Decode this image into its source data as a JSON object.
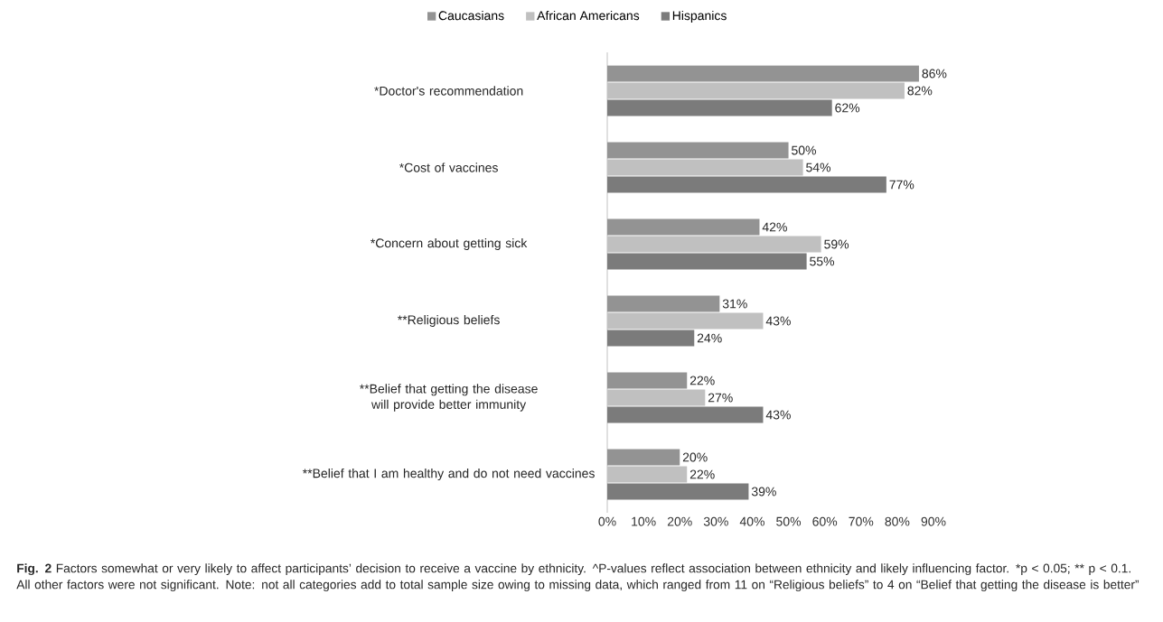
{
  "chart_data": {
    "type": "bar",
    "orientation": "horizontal",
    "legend": "top",
    "grid": false,
    "categories": [
      "*Doctor's recommendation",
      "*Cost of vaccines",
      "*Concern about getting sick",
      "**Religious beliefs",
      "**Belief that getting the disease will provide better immunity",
      "**Belief that I am healthy and do not need vaccines"
    ],
    "series": [
      {
        "name": "Caucasians",
        "color": "#939393",
        "values": [
          86,
          50,
          42,
          31,
          22,
          20
        ],
        "value_labels": [
          "86%",
          "50%",
          "42%",
          "31%",
          "22%",
          "20%"
        ]
      },
      {
        "name": "African Americans",
        "color": "#c0c0c0",
        "values": [
          82,
          54,
          59,
          43,
          27,
          22
        ],
        "value_labels": [
          "82%",
          "54%",
          "59%",
          "43%",
          "27%",
          "22%"
        ]
      },
      {
        "name": "Hispanics",
        "color": "#7b7b7b",
        "values": [
          62,
          77,
          55,
          24,
          43,
          39
        ],
        "value_labels": [
          "62%",
          "77%",
          "55%",
          "24%",
          "43%",
          "39%"
        ]
      }
    ],
    "xlim": [
      0,
      90
    ],
    "xticks": [
      {
        "value": 0,
        "label": "0%"
      },
      {
        "value": 10,
        "label": "10%"
      },
      {
        "value": 20,
        "label": "20%"
      },
      {
        "value": 30,
        "label": "30%"
      },
      {
        "value": 40,
        "label": "40%"
      },
      {
        "value": 50,
        "label": "50%"
      },
      {
        "value": 60,
        "label": "60%"
      },
      {
        "value": 70,
        "label": "70%"
      },
      {
        "value": 80,
        "label": "80%"
      },
      {
        "value": 90,
        "label": "90%"
      }
    ],
    "annotations": [
      "Fig. 2",
      "Factors somewhat or very likely to affect participants’ decision to receive a vaccine by ethnicity. ^P-values reflect association between ethnicity and likely influencing factor. *p < 0.05; ** p < 0.1. All other factors were not significant. Note: not all categories add to total sample size owing to missing data, which ranged from 11 on “Religious beliefs” to 4 on “Belief that getting the disease is better”"
    ]
  }
}
